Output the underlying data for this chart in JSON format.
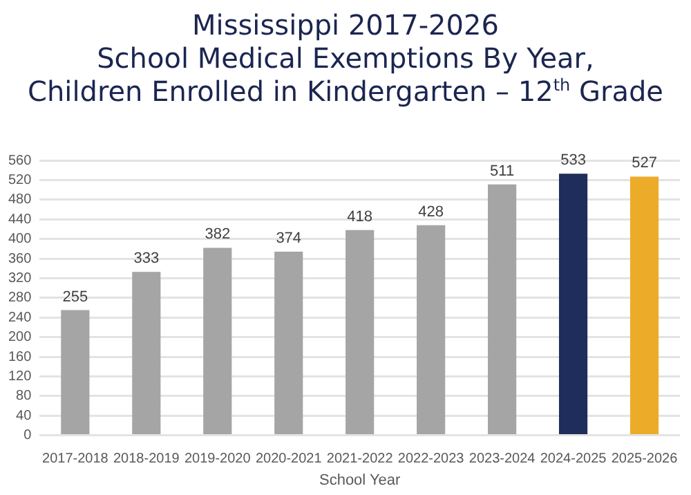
{
  "chart_data": {
    "type": "bar",
    "title": "Mississippi 2017-2026\nSchool Medical Exemptions By Year,\nChildren Enrolled in Kindergarten – 12$^{th}$ Grade",
    "xlabel": "School Year",
    "categories": [
      "2017-2018",
      "2018-2019",
      "2019-2020",
      "2020-2021",
      "2021-2022",
      "2022-2023",
      "2023-2024",
      "2024-2025",
      "2025-2026"
    ],
    "values": [
      255,
      333,
      382,
      374,
      418,
      428,
      511,
      533,
      527
    ],
    "colors": [
      "#a5a5a5",
      "#a5a5a5",
      "#a5a5a5",
      "#a5a5a5",
      "#a5a5a5",
      "#a5a5a5",
      "#a5a5a5",
      "#1f2d5c",
      "#ecac2a"
    ],
    "ylim": [
      0,
      560
    ],
    "yticks": [
      0,
      40,
      80,
      120,
      160,
      200,
      240,
      280,
      320,
      360,
      400,
      440,
      480,
      520,
      560
    ],
    "grid": "y",
    "data_labels": true,
    "legend": false
  }
}
